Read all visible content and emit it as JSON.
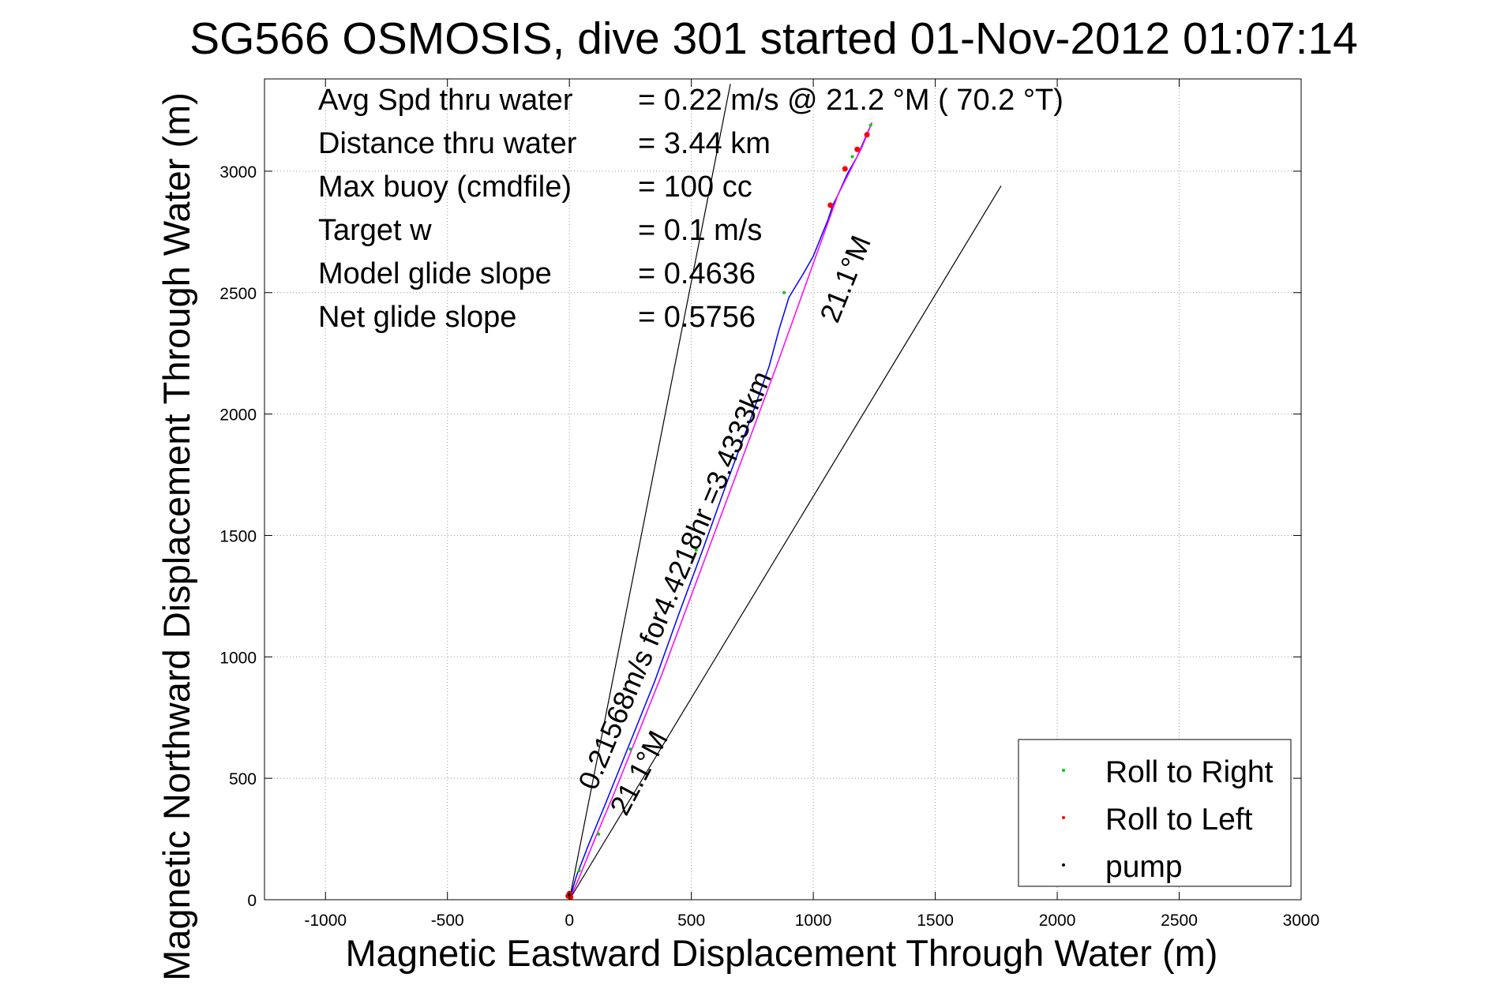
{
  "chart_data": {
    "type": "line",
    "title": "SG566 OSMOSIS, dive 301 started 01-Nov-2012 01:07:14",
    "xlabel": "Magnetic Eastward Displacement Through Water (m)",
    "ylabel": "Magnetic Northward Displacement Through Water (m)",
    "xlim": [
      -1250,
      3000
    ],
    "ylim": [
      0,
      3380
    ],
    "xticks": [
      -1000,
      -500,
      0,
      500,
      1000,
      1500,
      2000,
      2500,
      3000
    ],
    "yticks": [
      0,
      500,
      1000,
      1500,
      2000,
      2500,
      3000
    ],
    "xtick_labels": [
      "-1000",
      "-500",
      "0",
      "500",
      "1000",
      "1500",
      "2000",
      "2500",
      "3000"
    ],
    "ytick_labels": [
      "0",
      "500",
      "1000",
      "1500",
      "2000",
      "2500",
      "3000"
    ],
    "grid": true,
    "legend_position": "bottom-right",
    "legend": [
      {
        "name": "Roll to Right",
        "color": "#00cc00"
      },
      {
        "name": "Roll to Left",
        "color": "#ff0000"
      },
      {
        "name": "pump",
        "color": "#000000"
      }
    ],
    "summary": [
      {
        "label": "Avg Spd thru water",
        "value": "=  0.22 m/s @  21.2 °M ( 70.2 °T)"
      },
      {
        "label": "Distance thru water",
        "value": "=  3.44 km"
      },
      {
        "label": "Max buoy (cmdfile)",
        "value": "= 100 cc"
      },
      {
        "label": "Target w",
        "value": "= 0.1 m/s"
      },
      {
        "label": "Model glide slope",
        "value": "= 0.4636"
      },
      {
        "label": "Net glide slope",
        "value": "= 0.5756"
      }
    ],
    "annotations": {
      "track_label": "0.21568m/s for4.4218hr =3.4333km",
      "heading_label_upper": "21.1°M",
      "heading_label_lower": "21.1°M"
    },
    "series": [
      {
        "name": "track-blue",
        "color": "#0000ff",
        "x": [
          0,
          30,
          80,
          150,
          250,
          350,
          450,
          550,
          650,
          750,
          820,
          860,
          900,
          930,
          960,
          1000,
          1040,
          1060,
          1080,
          1100,
          1140,
          1180,
          1210,
          1240
        ],
        "y": [
          0,
          100,
          230,
          400,
          650,
          900,
          1180,
          1450,
          1730,
          2000,
          2200,
          2350,
          2480,
          2530,
          2580,
          2650,
          2750,
          2800,
          2860,
          2900,
          2990,
          3060,
          3130,
          3200
        ]
      },
      {
        "name": "track-magenta",
        "color": "#ff00ff",
        "x": [
          0,
          40,
          100,
          180,
          280,
          380,
          480,
          580,
          680,
          780,
          850,
          900,
          950,
          1000,
          1050,
          1100,
          1150,
          1200,
          1240
        ],
        "y": [
          0,
          90,
          240,
          430,
          680,
          930,
          1200,
          1470,
          1740,
          2010,
          2200,
          2340,
          2480,
          2620,
          2760,
          2900,
          3000,
          3100,
          3200
        ]
      },
      {
        "name": "cone-left",
        "color": "#000000",
        "x": [
          0,
          660
        ],
        "y": [
          0,
          3360
        ]
      },
      {
        "name": "cone-right",
        "color": "#000000",
        "x": [
          0,
          1770
        ],
        "y": [
          0,
          2940
        ]
      }
    ],
    "markers": {
      "roll_right": {
        "x": [
          40,
          120,
          250,
          520,
          880,
          1160,
          1235
        ],
        "y": [
          120,
          270,
          620,
          1440,
          2500,
          3060,
          3190
        ]
      },
      "roll_left": {
        "x": [
          -5,
          0,
          5,
          1070,
          1130,
          1180,
          1220
        ],
        "y": [
          15,
          25,
          10,
          2860,
          3010,
          3090,
          3150
        ]
      },
      "pump": {
        "x": [
          0
        ],
        "y": [
          20
        ]
      }
    }
  }
}
